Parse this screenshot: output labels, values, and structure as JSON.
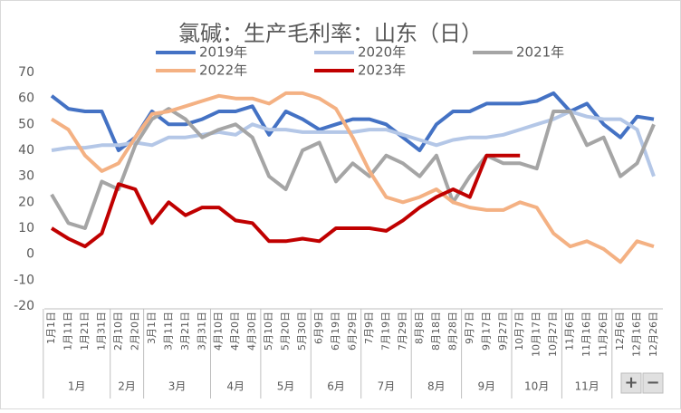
{
  "chart_data": {
    "type": "line",
    "title": "氯碱：生产毛利率：山东（日）",
    "categories": [
      "1月1日",
      "1月11日",
      "1月21日",
      "1月31日",
      "2月10日",
      "2月20日",
      "3月1日",
      "3月11日",
      "3月21日",
      "3月31日",
      "4月10日",
      "4月20日",
      "4月30日",
      "5月10日",
      "5月20日",
      "5月30日",
      "6月9日",
      "6月19日",
      "6月29日",
      "7月9日",
      "7月19日",
      "7月29日",
      "8月8日",
      "8月18日",
      "8月28日",
      "9月7日",
      "9月17日",
      "9月27日",
      "10月7日",
      "10月17日",
      "10月27日",
      "11月6日",
      "11月16日",
      "11月26日",
      "12月6日",
      "12月16日",
      "12月26日"
    ],
    "month_groups": [
      "1月",
      "2月",
      "3月",
      "4月",
      "5月",
      "6月",
      "7月",
      "8月",
      "9月",
      "10月",
      "11月"
    ],
    "series": [
      {
        "name": "2019年",
        "color": "#4472c4",
        "values": [
          61,
          56,
          55,
          55,
          40,
          45,
          55,
          50,
          50,
          52,
          55,
          55,
          57,
          46,
          55,
          52,
          48,
          50,
          52,
          52,
          50,
          45,
          40,
          50,
          55,
          55,
          58,
          58,
          58,
          59,
          62,
          55,
          58,
          50,
          45,
          53,
          52
        ]
      },
      {
        "name": "2020年",
        "color": "#b4c7e7",
        "values": [
          40,
          41,
          41,
          42,
          42,
          43,
          42,
          45,
          45,
          46,
          47,
          46,
          50,
          48,
          48,
          47,
          47,
          47,
          47,
          48,
          48,
          46,
          44,
          42,
          44,
          45,
          45,
          46,
          48,
          50,
          52,
          55,
          53,
          52,
          52,
          48,
          30
        ]
      },
      {
        "name": "2021年",
        "color": "#a5a5a5",
        "values": [
          23,
          12,
          10,
          28,
          25,
          42,
          52,
          56,
          52,
          45,
          48,
          50,
          45,
          30,
          25,
          40,
          43,
          28,
          35,
          30,
          38,
          35,
          30,
          38,
          20,
          30,
          38,
          35,
          35,
          33,
          55,
          55,
          42,
          45,
          30,
          35,
          50
        ]
      },
      {
        "name": "2022年",
        "color": "#f4b183",
        "values": [
          52,
          48,
          38,
          32,
          35,
          45,
          54,
          55,
          57,
          59,
          61,
          60,
          60,
          58,
          62,
          62,
          60,
          56,
          45,
          32,
          22,
          20,
          22,
          25,
          20,
          18,
          17,
          17,
          20,
          18,
          8,
          3,
          5,
          2,
          -3,
          5,
          3
        ]
      },
      {
        "name": "2023年",
        "color": "#c00000",
        "values": [
          10,
          6,
          3,
          8,
          27,
          25,
          12,
          20,
          15,
          18,
          18,
          13,
          12,
          5,
          5,
          6,
          5,
          10,
          10,
          10,
          9,
          13,
          18,
          22,
          25,
          22,
          38,
          38,
          38,
          null,
          null,
          null,
          null,
          null,
          null,
          null,
          null
        ]
      }
    ],
    "ylim": [
      -20,
      70
    ],
    "yticks": [
      -20,
      -10,
      0,
      10,
      20,
      30,
      40,
      50,
      60,
      70
    ],
    "grid": false
  },
  "controls": [
    "+",
    "−"
  ]
}
